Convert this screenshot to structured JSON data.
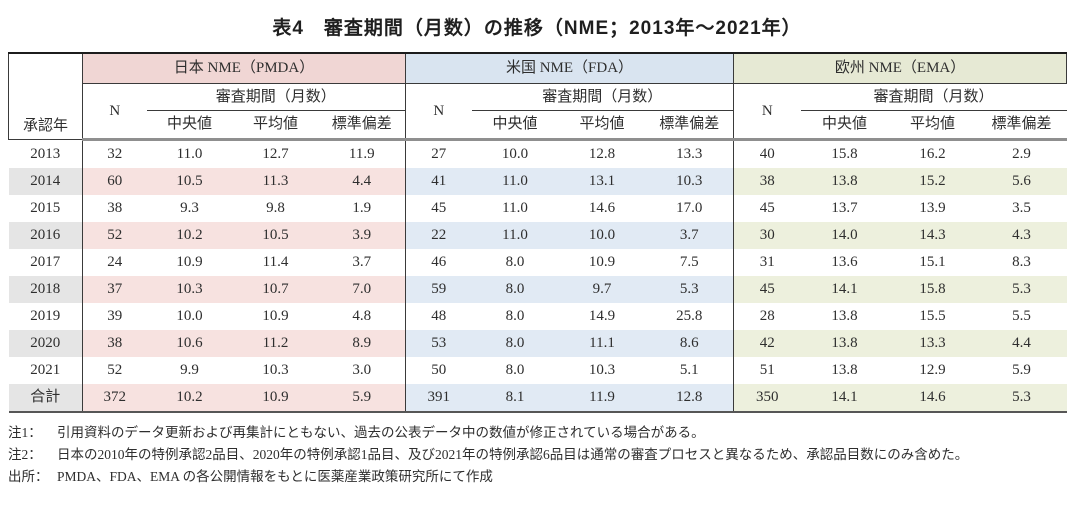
{
  "title": "表4　審査期間（月数）の推移（NME；2013年～2021年）",
  "colors": {
    "jp_header_bg": "#f0d6d4",
    "jp_row_bg": "#f7e2e0",
    "us_header_bg": "#d9e4f0",
    "us_row_bg": "#e1eaf4",
    "eu_header_bg": "#e6e9d4",
    "eu_row_bg": "#edf0dd",
    "year_stripe_bg": "#e5e5e5"
  },
  "table": {
    "year_header": "承認年",
    "n_header": "N",
    "period_header": "審査期間（月数）",
    "stat_headers": [
      "中央値",
      "平均値",
      "標準偏差"
    ],
    "groups": [
      {
        "key": "jp",
        "label": "日本 NME（PMDA）"
      },
      {
        "key": "us",
        "label": "米国 NME（FDA）"
      },
      {
        "key": "eu",
        "label": "欧州 NME（EMA）"
      }
    ],
    "rows": [
      {
        "year": "2013",
        "jp": [
          "32",
          "11.0",
          "12.7",
          "11.9"
        ],
        "us": [
          "27",
          "10.0",
          "12.8",
          "13.3"
        ],
        "eu": [
          "40",
          "15.8",
          "16.2",
          "2.9"
        ]
      },
      {
        "year": "2014",
        "jp": [
          "60",
          "10.5",
          "11.3",
          "4.4"
        ],
        "us": [
          "41",
          "11.0",
          "13.1",
          "10.3"
        ],
        "eu": [
          "38",
          "13.8",
          "15.2",
          "5.6"
        ]
      },
      {
        "year": "2015",
        "jp": [
          "38",
          "9.3",
          "9.8",
          "1.9"
        ],
        "us": [
          "45",
          "11.0",
          "14.6",
          "17.0"
        ],
        "eu": [
          "45",
          "13.7",
          "13.9",
          "3.5"
        ]
      },
      {
        "year": "2016",
        "jp": [
          "52",
          "10.2",
          "10.5",
          "3.9"
        ],
        "us": [
          "22",
          "11.0",
          "10.0",
          "3.7"
        ],
        "eu": [
          "30",
          "14.0",
          "14.3",
          "4.3"
        ]
      },
      {
        "year": "2017",
        "jp": [
          "24",
          "10.9",
          "11.4",
          "3.7"
        ],
        "us": [
          "46",
          "8.0",
          "10.9",
          "7.5"
        ],
        "eu": [
          "31",
          "13.6",
          "15.1",
          "8.3"
        ]
      },
      {
        "year": "2018",
        "jp": [
          "37",
          "10.3",
          "10.7",
          "7.0"
        ],
        "us": [
          "59",
          "8.0",
          "9.7",
          "5.3"
        ],
        "eu": [
          "45",
          "14.1",
          "15.8",
          "5.3"
        ]
      },
      {
        "year": "2019",
        "jp": [
          "39",
          "10.0",
          "10.9",
          "4.8"
        ],
        "us": [
          "48",
          "8.0",
          "14.9",
          "25.8"
        ],
        "eu": [
          "28",
          "13.8",
          "15.5",
          "5.5"
        ]
      },
      {
        "year": "2020",
        "jp": [
          "38",
          "10.6",
          "11.2",
          "8.9"
        ],
        "us": [
          "53",
          "8.0",
          "11.1",
          "8.6"
        ],
        "eu": [
          "42",
          "13.8",
          "13.3",
          "4.4"
        ]
      },
      {
        "year": "2021",
        "jp": [
          "52",
          "9.9",
          "10.3",
          "3.0"
        ],
        "us": [
          "50",
          "8.0",
          "10.3",
          "5.1"
        ],
        "eu": [
          "51",
          "13.8",
          "12.9",
          "5.9"
        ]
      },
      {
        "year": "合計",
        "jp": [
          "372",
          "10.2",
          "10.9",
          "5.9"
        ],
        "us": [
          "391",
          "8.1",
          "11.9",
          "12.8"
        ],
        "eu": [
          "350",
          "14.1",
          "14.6",
          "5.3"
        ]
      }
    ],
    "striped_row_indexes": [
      1,
      3,
      5,
      7,
      9
    ]
  },
  "notes": [
    {
      "label": "注1：",
      "text": "引用資料のデータ更新および再集計にともない、過去の公表データ中の数値が修正されている場合がある。"
    },
    {
      "label": "注2：",
      "text": "日本の2010年の特例承認2品目、2020年の特例承認1品目、及び2021年の特例承認6品目は通常の審査プロセスと異なるため、承認品目数にのみ含めた。"
    },
    {
      "label": "出所：",
      "text": "PMDA、FDA、EMA の各公開情報をもとに医薬産業政策研究所にて作成"
    }
  ]
}
